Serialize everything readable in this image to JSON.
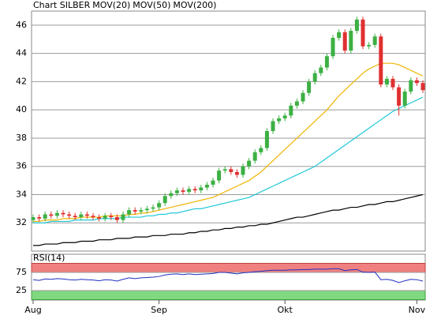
{
  "chart_data": [
    {
      "type": "candlestick",
      "title": "Chart SILBER",
      "title_color": "#666666",
      "up_color": "#3cb043",
      "down_color": "#e03030",
      "grid": true,
      "categories": [
        "Aug",
        null,
        null,
        null,
        null,
        null,
        null,
        null,
        null,
        null,
        null,
        null,
        null,
        null,
        null,
        null,
        null,
        null,
        null,
        null,
        null,
        "Sep",
        null,
        null,
        null,
        null,
        null,
        null,
        null,
        null,
        null,
        null,
        null,
        null,
        null,
        null,
        null,
        null,
        null,
        null,
        null,
        null,
        "Okt",
        null,
        null,
        null,
        null,
        null,
        null,
        null,
        null,
        null,
        null,
        null,
        null,
        null,
        null,
        null,
        null,
        null,
        null,
        null,
        null,
        null,
        "Nov",
        null
      ],
      "open": [
        32.2,
        32.4,
        32.3,
        32.6,
        32.5,
        32.7,
        32.6,
        32.5,
        32.4,
        32.6,
        32.5,
        32.4,
        32.3,
        32.5,
        32.4,
        32.2,
        32.6,
        32.9,
        32.8,
        32.9,
        33.0,
        33.1,
        33.4,
        33.9,
        34.1,
        34.3,
        34.2,
        34.4,
        34.3,
        34.5,
        34.7,
        35.0,
        35.7,
        35.8,
        35.6,
        35.4,
        36.0,
        36.4,
        37.0,
        37.3,
        38.5,
        39.2,
        39.4,
        39.6,
        40.3,
        40.6,
        41.2,
        42.0,
        42.6,
        43.0,
        43.8,
        45.1,
        45.5,
        44.2,
        45.6,
        46.4,
        44.5,
        44.6,
        45.2,
        41.8,
        42.2,
        41.6,
        40.3,
        41.3,
        42.1,
        41.9
      ],
      "high": [
        32.6,
        32.6,
        32.8,
        32.8,
        32.9,
        32.9,
        32.8,
        32.7,
        32.8,
        32.8,
        32.7,
        32.6,
        32.7,
        32.7,
        32.6,
        32.8,
        33.1,
        33.1,
        33.1,
        33.2,
        33.3,
        33.6,
        34.1,
        34.3,
        34.5,
        34.5,
        34.6,
        34.6,
        34.7,
        34.9,
        35.2,
        35.9,
        36.0,
        36.0,
        35.8,
        36.2,
        36.6,
        37.2,
        37.5,
        38.7,
        39.4,
        39.6,
        39.8,
        40.5,
        40.8,
        41.4,
        42.2,
        42.8,
        43.2,
        44.0,
        45.3,
        45.7,
        45.7,
        45.8,
        46.6,
        46.6,
        44.8,
        45.4,
        45.4,
        42.4,
        42.4,
        41.8,
        41.5,
        42.3,
        42.3,
        42.1
      ],
      "low": [
        32.0,
        32.1,
        32.1,
        32.3,
        32.3,
        32.4,
        32.3,
        32.2,
        32.2,
        32.3,
        32.2,
        32.1,
        32.1,
        32.2,
        32.0,
        32.0,
        32.4,
        32.6,
        32.6,
        32.7,
        32.8,
        32.9,
        33.2,
        33.7,
        33.9,
        34.0,
        34.0,
        34.1,
        34.1,
        34.3,
        34.5,
        34.8,
        35.5,
        35.4,
        35.2,
        35.2,
        35.8,
        36.2,
        36.8,
        37.1,
        38.3,
        39.0,
        39.2,
        39.4,
        40.1,
        40.4,
        41.0,
        41.8,
        42.4,
        42.8,
        43.6,
        44.9,
        44.0,
        44.0,
        45.4,
        44.3,
        44.3,
        44.4,
        41.6,
        41.6,
        41.4,
        39.6,
        40.1,
        41.1,
        41.7,
        41.2
      ],
      "close": [
        32.4,
        32.3,
        32.6,
        32.5,
        32.7,
        32.6,
        32.5,
        32.4,
        32.6,
        32.5,
        32.4,
        32.3,
        32.5,
        32.4,
        32.2,
        32.6,
        32.9,
        32.8,
        32.9,
        33.0,
        33.1,
        33.4,
        33.9,
        34.1,
        34.3,
        34.2,
        34.4,
        34.3,
        34.5,
        34.7,
        35.0,
        35.7,
        35.8,
        35.6,
        35.4,
        36.0,
        36.4,
        37.0,
        37.3,
        38.5,
        39.2,
        39.4,
        39.6,
        40.3,
        40.6,
        41.2,
        42.0,
        42.6,
        43.0,
        43.8,
        45.1,
        45.5,
        44.2,
        45.6,
        46.4,
        44.5,
        44.6,
        45.2,
        41.8,
        42.2,
        41.6,
        40.3,
        41.3,
        42.1,
        41.9,
        41.4
      ],
      "series": [
        {
          "name": "MOV(20)",
          "color": "#f0b400",
          "values": [
            32.1,
            32.1,
            32.2,
            32.2,
            32.2,
            32.3,
            32.3,
            32.3,
            32.4,
            32.4,
            32.4,
            32.4,
            32.5,
            32.5,
            32.5,
            32.5,
            32.6,
            32.6,
            32.7,
            32.7,
            32.8,
            32.9,
            33.0,
            33.1,
            33.2,
            33.3,
            33.4,
            33.5,
            33.6,
            33.7,
            33.8,
            34.0,
            34.2,
            34.4,
            34.6,
            34.8,
            35.0,
            35.3,
            35.6,
            36.0,
            36.4,
            36.8,
            37.2,
            37.6,
            38.0,
            38.4,
            38.8,
            39.2,
            39.6,
            40.0,
            40.5,
            41.0,
            41.4,
            41.8,
            42.2,
            42.6,
            42.9,
            43.1,
            43.3,
            43.3,
            43.3,
            43.2,
            43.0,
            42.8,
            42.6,
            42.4
          ]
        },
        {
          "name": "MOV(50)",
          "color": "#20c8d8",
          "values": [
            32.0,
            32.0,
            32.0,
            32.1,
            32.1,
            32.1,
            32.1,
            32.2,
            32.2,
            32.2,
            32.2,
            32.3,
            32.3,
            32.3,
            32.3,
            32.4,
            32.4,
            32.4,
            32.4,
            32.5,
            32.5,
            32.6,
            32.6,
            32.7,
            32.7,
            32.8,
            32.9,
            33.0,
            33.0,
            33.1,
            33.2,
            33.3,
            33.4,
            33.5,
            33.6,
            33.7,
            33.8,
            34.0,
            34.2,
            34.4,
            34.6,
            34.8,
            35.0,
            35.2,
            35.4,
            35.6,
            35.8,
            36.0,
            36.3,
            36.6,
            36.9,
            37.2,
            37.5,
            37.8,
            38.1,
            38.4,
            38.7,
            39.0,
            39.3,
            39.6,
            39.9,
            40.1,
            40.3,
            40.5,
            40.7,
            40.9
          ]
        },
        {
          "name": "MOV(200)",
          "color": "#000000",
          "values": [
            30.4,
            30.4,
            30.5,
            30.5,
            30.5,
            30.6,
            30.6,
            30.6,
            30.7,
            30.7,
            30.7,
            30.8,
            30.8,
            30.8,
            30.9,
            30.9,
            30.9,
            31.0,
            31.0,
            31.0,
            31.1,
            31.1,
            31.1,
            31.2,
            31.2,
            31.2,
            31.3,
            31.3,
            31.4,
            31.4,
            31.5,
            31.5,
            31.6,
            31.6,
            31.7,
            31.7,
            31.8,
            31.8,
            31.9,
            31.9,
            32.0,
            32.1,
            32.2,
            32.3,
            32.4,
            32.4,
            32.5,
            32.6,
            32.7,
            32.8,
            32.9,
            32.9,
            33.0,
            33.1,
            33.1,
            33.2,
            33.3,
            33.3,
            33.4,
            33.5,
            33.5,
            33.6,
            33.7,
            33.8,
            33.9,
            34.0
          ]
        }
      ],
      "ylim": [
        30,
        47
      ],
      "yticks": [
        32,
        34,
        36,
        38,
        40,
        42,
        44,
        46
      ]
    },
    {
      "type": "line",
      "grid": true,
      "band_colors": [
        "#f08080",
        "#80d880"
      ],
      "series": [
        {
          "name": "RSI(14)",
          "color": "#2030c0",
          "values": [
            55,
            53,
            57,
            56,
            58,
            57,
            55,
            54,
            56,
            55,
            54,
            52,
            55,
            54,
            51,
            56,
            60,
            58,
            60,
            61,
            62,
            64,
            68,
            70,
            71,
            69,
            71,
            69,
            70,
            71,
            72,
            75,
            75,
            73,
            71,
            74,
            75,
            77,
            78,
            80,
            81,
            81,
            81,
            82,
            82,
            83,
            83,
            84,
            84,
            84,
            85,
            85,
            80,
            82,
            83,
            76,
            75,
            76,
            55,
            56,
            53,
            47,
            52,
            56,
            55,
            51
          ]
        }
      ],
      "ylim": [
        0,
        100
      ],
      "yticks": [
        25,
        75
      ]
    }
  ]
}
